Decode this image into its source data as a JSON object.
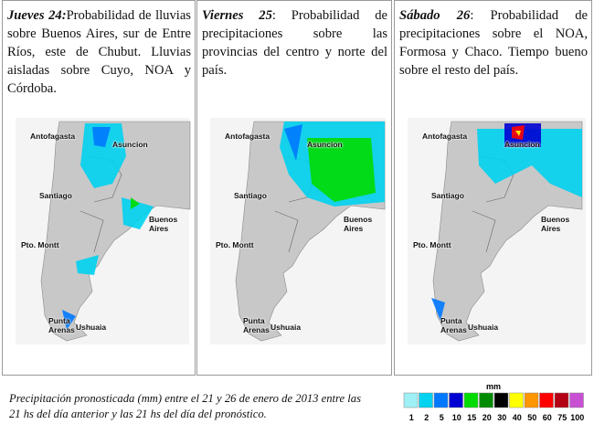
{
  "panels": [
    {
      "day": "Jueves 24:",
      "text": "Probabilidad de lluvias sobre Buenos Aires, sur de Entre Ríos, este de Chubut. Lluvias aisladas sobre Cuyo, NOA y Córdoba.",
      "map_labels": [
        "Antofagasta",
        "Asuncion",
        "Santiago",
        "Buenos Aires",
        "Pto. Montt",
        "Punta Arenas",
        "Ushuaia"
      ]
    },
    {
      "day": "Viernes 25",
      "text": ": Probabilidad de precipitaciones sobre las provincias del centro y norte del país.",
      "map_labels": [
        "Antofagasta",
        "Asuncion",
        "Santiago",
        "Buenos Aires",
        "Pto. Montt",
        "Punta Arenas",
        "Ushuaia"
      ]
    },
    {
      "day": "Sábado 26",
      "text": ": Probabilidad de precipitaciones sobre el NOA, Formosa y Chaco. Tiempo bueno sobre el resto del país.",
      "map_labels": [
        "Antofagasta",
        "Asuncion",
        "Santiago",
        "Buenos Aires",
        "Pto. Montt",
        "Punta Arenas",
        "Ushuaia"
      ]
    }
  ],
  "caption": "Precipitación pronosticada (mm) entre el 21 y 26 de enero de 2013 entre las 21 hs del día anterior y las 21 hs del día del pronóstico.",
  "legend": {
    "unit": "mm",
    "labels": [
      "1",
      "2",
      "5",
      "10",
      "15",
      "20",
      "30",
      "40",
      "50",
      "60",
      "75",
      "100"
    ],
    "colors": [
      "#9ff0f5",
      "#00d2f0",
      "#0078ff",
      "#0000d2",
      "#00dc00",
      "#008c00",
      "#000000",
      "#ffff00",
      "#ff9600",
      "#ff0000",
      "#b40014",
      "#c850d2"
    ]
  }
}
